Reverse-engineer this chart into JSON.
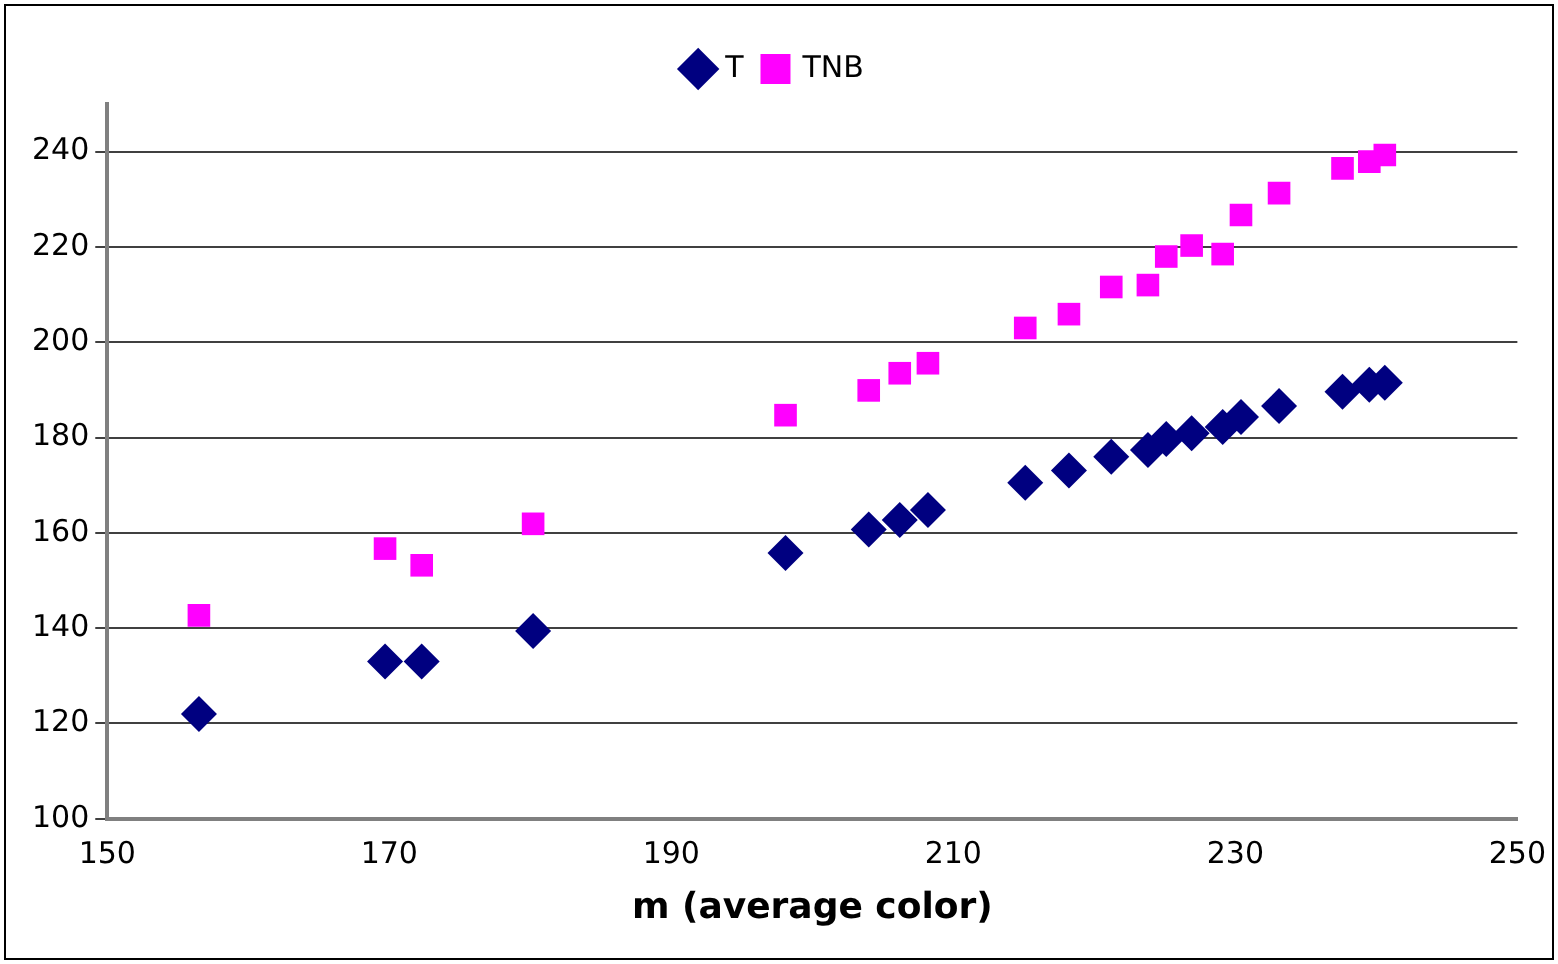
{
  "chart_data": {
    "type": "scatter",
    "xlabel": "m (average color)",
    "xlim": [
      150,
      250
    ],
    "xticks": [
      150,
      170,
      190,
      210,
      230,
      250
    ],
    "ylim": [
      100,
      250
    ],
    "yticks": [
      100,
      120,
      140,
      160,
      180,
      200,
      220,
      240
    ],
    "grid": "y",
    "legend": "top",
    "x": [
      156.5,
      169.7,
      172.3,
      180.2,
      198.1,
      204.0,
      206.2,
      208.2,
      215.1,
      218.2,
      221.2,
      223.8,
      225.1,
      226.9,
      229.1,
      230.4,
      233.1,
      237.6,
      239.5,
      240.6
    ],
    "series": [
      {
        "name": "T",
        "color": "#000080",
        "marker": "diamond",
        "values": [
          122,
          133,
          133,
          139.4,
          155.8,
          160.7,
          162.7,
          164.8,
          170.5,
          173.1,
          176.0,
          177.4,
          179.7,
          180.9,
          182.2,
          184.3,
          186.6,
          189.6,
          191.1,
          191.5
        ]
      },
      {
        "name": "TNB",
        "color": "#ff00ff",
        "marker": "square",
        "values": [
          142.7,
          156.7,
          153.2,
          161.9,
          184.7,
          189.9,
          193.5,
          195.6,
          203.0,
          205.9,
          211.6,
          212.0,
          218.0,
          220.3,
          218.5,
          226.7,
          231.3,
          236.5,
          237.9,
          239.3
        ]
      }
    ]
  }
}
